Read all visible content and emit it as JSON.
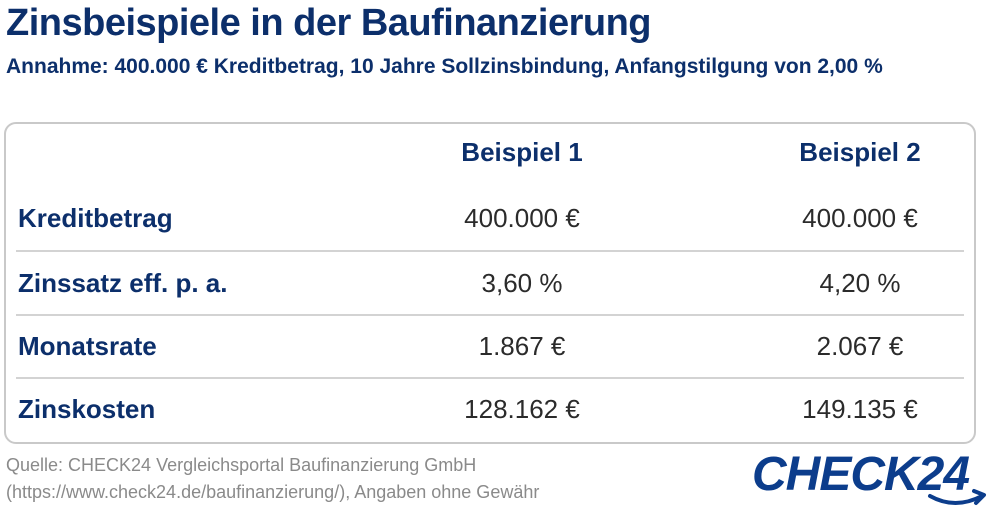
{
  "header": {
    "title": "Zinsbeispiele in der Baufinanzierung",
    "subtitle": "Annahme: 400.000 € Kreditbetrag, 10 Jahre Sollzinsbindung, Anfangstilgung von 2,00 %"
  },
  "chart_data": {
    "type": "table",
    "columns": [
      "Beispiel 1",
      "Beispiel 2"
    ],
    "rows": [
      {
        "label": "Kreditbetrag",
        "values": [
          "400.000 €",
          "400.000 €"
        ]
      },
      {
        "label": "Zinssatz eff. p. a.",
        "values": [
          "3,60 %",
          "4,20 %"
        ]
      },
      {
        "label": "Monatsrate",
        "values": [
          "1.867 €",
          "2.067 €"
        ]
      },
      {
        "label": "Zinskosten",
        "values": [
          "128.162 €",
          "149.135 €"
        ]
      }
    ]
  },
  "footer": {
    "source_line1": "Quelle: CHECK24 Vergleichsportal Baufinanzierung GmbH",
    "source_line2": "(https://www.check24.de/baufinanzierung/), Angaben ohne Gewähr",
    "logo_text": "CHECK24"
  },
  "colors": {
    "primary": "#0c2f6b",
    "value_text": "#2b2b2b",
    "source_text": "#8a8a8a",
    "logo": "#0c3d8c"
  }
}
